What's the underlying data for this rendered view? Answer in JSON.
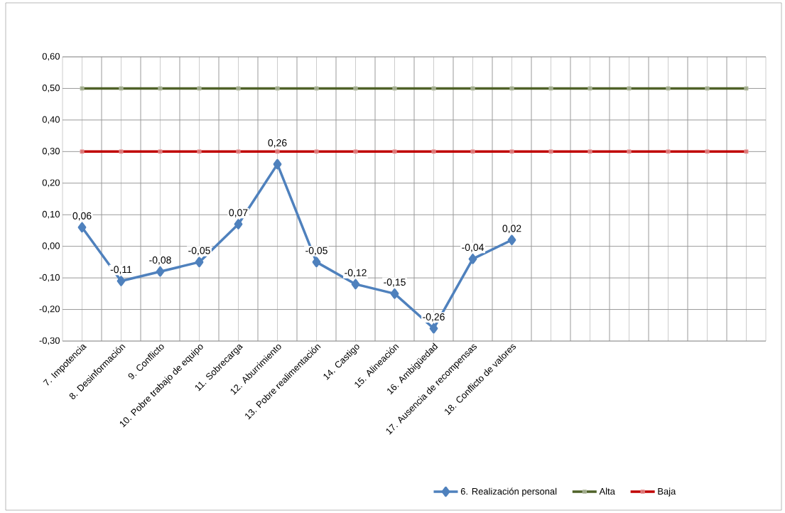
{
  "chart_data": {
    "type": "line",
    "categories": [
      "7. Impotencia",
      "8. Desinformación",
      "9. Conflicto",
      "10. Pobre trabajo de equipo",
      "11. Sobrecarga",
      "12. Aburrimiento",
      "13. Pobre realimentación",
      "14. Castigo",
      "15. Alineación",
      "16. Ambigüedad",
      "17. Ausencia de recompensas",
      "18. Conflicto de valores",
      null,
      null,
      null,
      null,
      null,
      null
    ],
    "series": [
      {
        "name": "6. Realización personal",
        "color": "#4f81bd",
        "marker": "diamond",
        "values": [
          0.06,
          -0.11,
          -0.08,
          -0.05,
          0.07,
          0.26,
          -0.05,
          -0.12,
          -0.15,
          -0.26,
          -0.04,
          0.02,
          null,
          null,
          null,
          null,
          null,
          null
        ],
        "value_labels": [
          "0,06",
          "-0,11",
          "-0,08",
          "-0,05",
          "0,07",
          "0,26",
          "-0,05",
          "-0,12",
          "-0,15",
          "-0,26",
          "-0,04",
          "0,02",
          null,
          null,
          null,
          null,
          null,
          null
        ]
      },
      {
        "name": "Alta",
        "color": "#4f6228",
        "marker": "square",
        "values": [
          0.5,
          0.5,
          0.5,
          0.5,
          0.5,
          0.5,
          0.5,
          0.5,
          0.5,
          0.5,
          0.5,
          0.5,
          0.5,
          0.5,
          0.5,
          0.5,
          0.5,
          0.5
        ]
      },
      {
        "name": "Baja",
        "color": "#c00000",
        "marker": "square",
        "values": [
          0.3,
          0.3,
          0.3,
          0.3,
          0.3,
          0.3,
          0.3,
          0.3,
          0.3,
          0.3,
          0.3,
          0.3,
          0.3,
          0.3,
          0.3,
          0.3,
          0.3,
          0.3
        ]
      }
    ],
    "ylim": [
      -0.3,
      0.6
    ],
    "yticks": [
      {
        "value": -0.3,
        "label": "-0,30"
      },
      {
        "value": -0.2,
        "label": "-0,20"
      },
      {
        "value": -0.1,
        "label": "-0,10"
      },
      {
        "value": 0,
        "label": "0,00"
      },
      {
        "value": 0.1,
        "label": "0,10"
      },
      {
        "value": 0.2,
        "label": "0,20"
      },
      {
        "value": 0.3,
        "label": "0,30"
      },
      {
        "value": 0.4,
        "label": "0,40"
      },
      {
        "value": 0.5,
        "label": "0,50"
      },
      {
        "value": 0.6,
        "label": "0,60"
      }
    ],
    "grid": true,
    "legend": "bottom",
    "line_style": "solid"
  }
}
